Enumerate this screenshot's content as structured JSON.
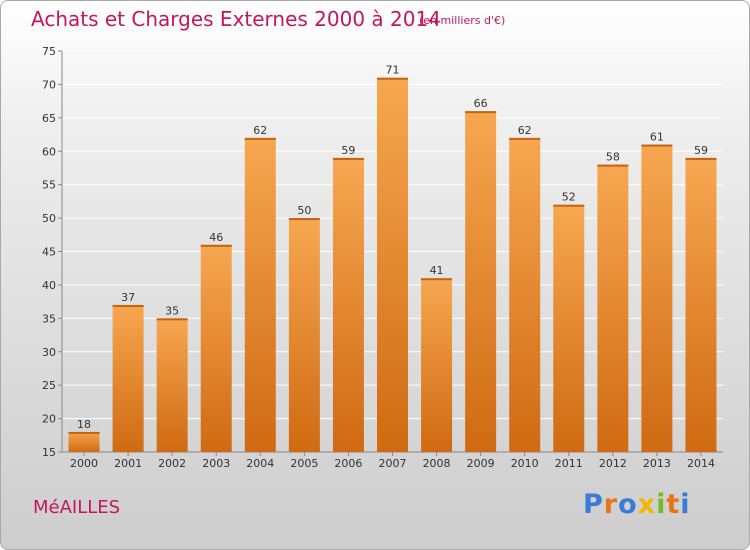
{
  "header": {
    "title": "Achats et Charges Externes 2000 à 2014",
    "unit": "(en milliers d'€)"
  },
  "footer": {
    "place": "MéAILLES",
    "logo": "Proxiti",
    "logo_colors": [
      "#3a7bd5",
      "#e8731a",
      "#3a7bd5",
      "#f2b705",
      "#79b928",
      "#e8731a",
      "#3a7bd5"
    ]
  },
  "colors": {
    "bar_light": "#f7a751",
    "bar_dark": "#cf6a12",
    "title": "#c2185b"
  },
  "chart_data": {
    "type": "bar",
    "title": "Achats et Charges Externes 2000 à 2014",
    "subtitle": "(en milliers d'€)",
    "categories": [
      "2000",
      "2001",
      "2002",
      "2003",
      "2004",
      "2005",
      "2006",
      "2007",
      "2008",
      "2009",
      "2010",
      "2011",
      "2012",
      "2013",
      "2014"
    ],
    "values": [
      18,
      37,
      35,
      46,
      62,
      50,
      59,
      71,
      41,
      66,
      62,
      52,
      58,
      61,
      59
    ],
    "ylim": [
      15,
      75
    ],
    "yticks": [
      15,
      20,
      25,
      30,
      35,
      40,
      45,
      50,
      55,
      60,
      65,
      70,
      75
    ],
    "xlabel": "",
    "ylabel": "",
    "grid": true
  }
}
